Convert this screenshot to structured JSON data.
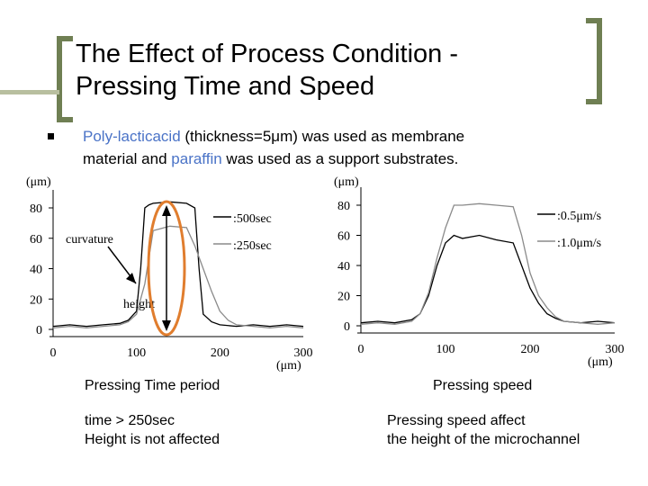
{
  "slide": {
    "title_line1": "The Effect of Process Condition -",
    "title_line2": "Pressing Time and Speed",
    "bullet": {
      "part1": "Poly-lacticacid",
      "part2": " (thickness=5μm) was used as membrane",
      "part3": "material and ",
      "part4": "paraffin",
      "part5": " was used as a support substrates."
    },
    "accent_color": "#4a73c7",
    "bracket_color": "#6f7f53"
  },
  "chart_data": [
    {
      "type": "line",
      "y_unit_label": "(μm)",
      "x_unit_label": "(μm)",
      "xlim": [
        0,
        300
      ],
      "ylim": [
        0,
        80
      ],
      "x_ticks": [
        "0",
        "100",
        "200",
        "300"
      ],
      "y_ticks": [
        "0",
        "20",
        "40",
        "60",
        "80"
      ],
      "legend": [
        "500sec",
        "250sec"
      ],
      "annotations": [
        "curvature",
        "height"
      ],
      "series": [
        {
          "name": "500sec",
          "color": "#000000",
          "x": [
            0,
            20,
            40,
            60,
            80,
            90,
            100,
            105,
            110,
            115,
            120,
            140,
            160,
            170,
            175,
            180,
            190,
            200,
            220,
            240,
            260,
            280,
            300
          ],
          "y": [
            2,
            3,
            2,
            3,
            4,
            6,
            12,
            40,
            80,
            82,
            83,
            84,
            83,
            80,
            40,
            10,
            5,
            3,
            2,
            3,
            2,
            3,
            2
          ]
        },
        {
          "name": "250sec",
          "color": "#8a8a8a",
          "x": [
            0,
            20,
            40,
            60,
            80,
            90,
            100,
            110,
            120,
            140,
            160,
            170,
            180,
            190,
            200,
            210,
            220,
            240,
            260,
            280,
            300
          ],
          "y": [
            1,
            2,
            1,
            2,
            3,
            5,
            10,
            30,
            65,
            68,
            67,
            55,
            40,
            25,
            12,
            6,
            3,
            2,
            1,
            2,
            1
          ]
        }
      ],
      "caption_title": "Pressing Time period",
      "caption_line1": "time > 250sec",
      "caption_line2": "Height is not affected"
    },
    {
      "type": "line",
      "y_unit_label": "(μm)",
      "x_unit_label": "(μm)",
      "xlim": [
        0,
        300
      ],
      "ylim": [
        0,
        80
      ],
      "x_ticks": [
        "0",
        "100",
        "200",
        "300"
      ],
      "y_ticks": [
        "0",
        "20",
        "40",
        "60",
        "80"
      ],
      "legend": [
        "0.5μm/s",
        "1.0μm/s"
      ],
      "series": [
        {
          "name": "0.5μm/s",
          "color": "#000000",
          "x": [
            0,
            20,
            40,
            60,
            70,
            80,
            90,
            100,
            110,
            120,
            140,
            160,
            180,
            190,
            200,
            210,
            220,
            230,
            240,
            260,
            280,
            300
          ],
          "y": [
            2,
            3,
            2,
            4,
            8,
            20,
            40,
            55,
            60,
            58,
            60,
            57,
            55,
            40,
            25,
            15,
            8,
            5,
            3,
            2,
            3,
            2
          ]
        },
        {
          "name": "1.0μm/s",
          "color": "#8a8a8a",
          "x": [
            0,
            20,
            40,
            60,
            70,
            80,
            90,
            100,
            110,
            120,
            140,
            160,
            180,
            190,
            200,
            210,
            220,
            230,
            240,
            260,
            280,
            300
          ],
          "y": [
            1,
            2,
            1,
            3,
            8,
            22,
            45,
            65,
            80,
            80,
            81,
            80,
            79,
            60,
            35,
            20,
            12,
            6,
            3,
            2,
            1,
            2
          ]
        }
      ],
      "caption_title": "Pressing speed",
      "caption_line1": "Pressing speed affect",
      "caption_line2": "the height of the microchannel"
    }
  ]
}
